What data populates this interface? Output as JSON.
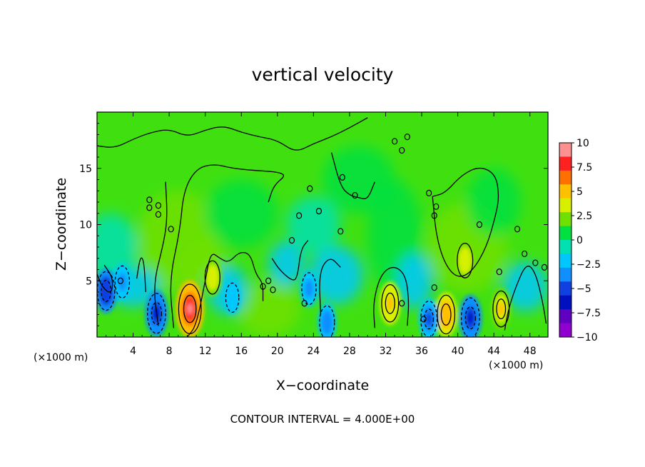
{
  "chart_data": {
    "type": "heatmap",
    "title": "vertical velocity",
    "xlabel": "X−coordinate",
    "ylabel": "Z−coordinate",
    "x_unit_left": "(×1000 m)",
    "x_unit_right": "(×1000 m)",
    "xlim": [
      0,
      50
    ],
    "ylim": [
      0,
      20
    ],
    "x_ticks": [
      4,
      8,
      12,
      16,
      20,
      24,
      28,
      32,
      36,
      40,
      44,
      48
    ],
    "y_ticks": [
      5,
      10,
      15
    ],
    "colorbar": {
      "labels": [
        "10",
        "7.5",
        "5",
        "2.5",
        "0",
        "−2.5",
        "−5",
        "−7.5",
        "−10"
      ],
      "levels": [
        10,
        7.5,
        5,
        2.5,
        0,
        -2.5,
        -5,
        -7.5,
        -10
      ],
      "colors": [
        "#ff9090",
        "#ff2020",
        "#ff7000",
        "#ffc000",
        "#d8f000",
        "#70e000",
        "#00e040",
        "#00e0b0",
        "#00c8ff",
        "#1090ff",
        "#1040e0",
        "#0010c0",
        "#6000c0",
        "#9000d0"
      ]
    },
    "features": [
      {
        "x": 10.3,
        "z": 2.5,
        "w": 10
      },
      {
        "x": 32.5,
        "z": 3.0,
        "w": 5.5
      },
      {
        "x": 38.7,
        "z": 2.0,
        "w": 6
      },
      {
        "x": 40.8,
        "z": 6.8,
        "w": 4.5
      },
      {
        "x": 44.8,
        "z": 2.5,
        "w": 5
      },
      {
        "x": 12.8,
        "z": 5.3,
        "w": 4
      },
      {
        "x": 1.0,
        "z": 4.1,
        "w": -6
      },
      {
        "x": 6.6,
        "z": 2.1,
        "w": -6.5
      },
      {
        "x": 41.4,
        "z": 1.7,
        "w": -6.5
      },
      {
        "x": 36.8,
        "z": 1.6,
        "w": -5
      },
      {
        "x": 25.5,
        "z": 1.3,
        "w": -4
      },
      {
        "x": 23.5,
        "z": 4.3,
        "w": -3.5
      },
      {
        "x": 2.8,
        "z": 4.9,
        "w": -3.5
      },
      {
        "x": 15.0,
        "z": 3.5,
        "w": -2.5
      }
    ],
    "footnote": "CONTOUR INTERVAL = 4.000E+00"
  }
}
